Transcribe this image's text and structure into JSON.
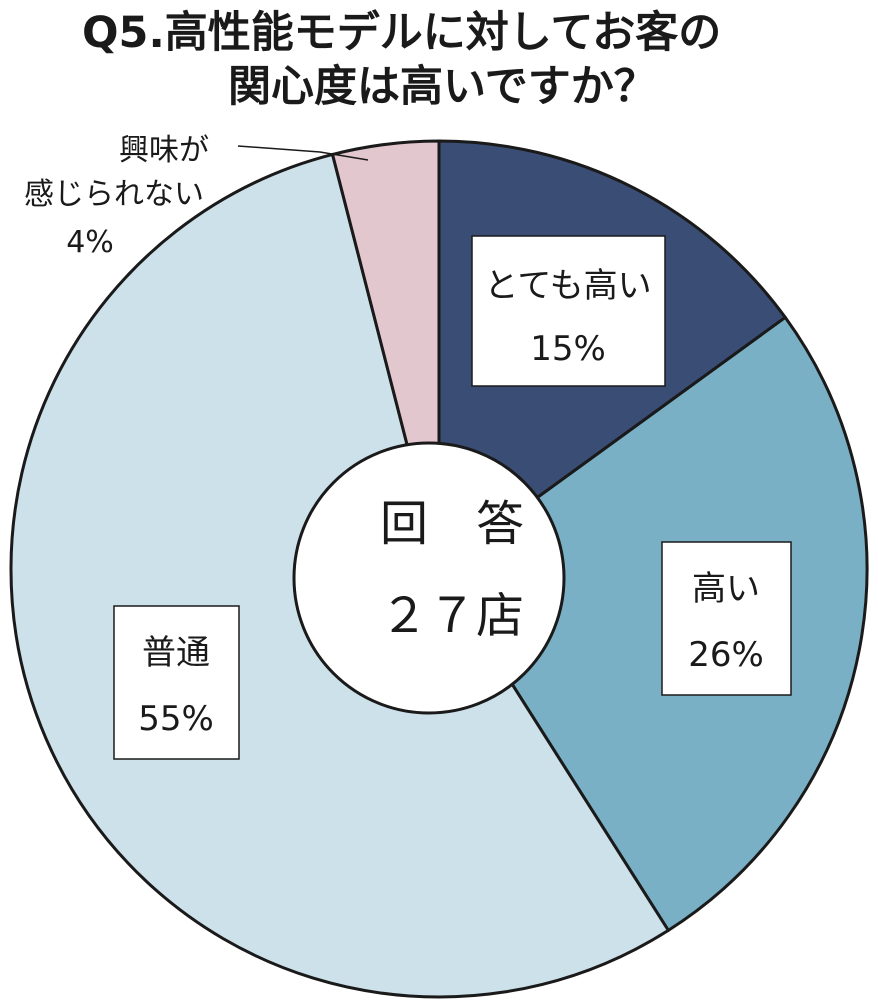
{
  "title": {
    "line1": "Q5.高性能モデルに対してお客の",
    "line2": "関心度は高いですか？"
  },
  "center": {
    "line1": "回　答",
    "line2": "２７店"
  },
  "chart_data": {
    "type": "pie",
    "donut": true,
    "title": "Q5.高性能モデルに対してお客の関心度は高いですか？",
    "start": "12 o'clock",
    "direction": "clockwise",
    "slices": [
      {
        "label": "とても高い",
        "percent_label": "15%",
        "value": 15,
        "color": "#3a4d75"
      },
      {
        "label": "高い",
        "percent_label": "26%",
        "value": 26,
        "color": "#7ab0c6"
      },
      {
        "label": "普通",
        "percent_label": "55%",
        "value": 55,
        "color": "#cde1ea"
      },
      {
        "label": "興味が感じられない",
        "label_lines": [
          "興味が",
          "感じられない"
        ],
        "percent_label": "4%",
        "value": 4,
        "color": "#e3c7cf"
      }
    ]
  }
}
